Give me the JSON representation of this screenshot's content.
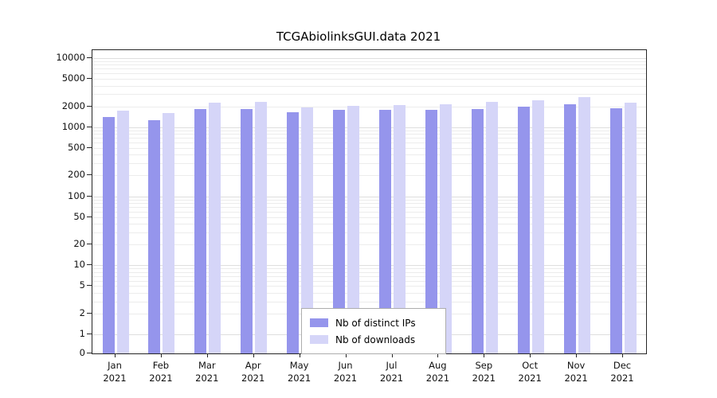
{
  "chart_data": {
    "type": "bar",
    "title": "TCGAbiolinksGUI.data 2021",
    "year": "2021",
    "categories": [
      "Jan",
      "Feb",
      "Mar",
      "Apr",
      "May",
      "Jun",
      "Jul",
      "Aug",
      "Sep",
      "Oct",
      "Nov",
      "Dec"
    ],
    "series": [
      {
        "name": "Nb of distinct IPs",
        "color": "#9595ec",
        "values": [
          1400,
          1250,
          1850,
          1850,
          1650,
          1800,
          1800,
          1800,
          1850,
          2000,
          2150,
          1900
        ]
      },
      {
        "name": "Nb of downloads",
        "color": "#d5d5f8",
        "values": [
          1750,
          1600,
          2250,
          2300,
          1950,
          2050,
          2100,
          2150,
          2300,
          2450,
          2700,
          2250
        ]
      }
    ],
    "yscale": "log",
    "ylim": [
      0,
      10000
    ],
    "yticks": [
      0,
      1,
      2,
      5,
      10,
      20,
      50,
      100,
      200,
      500,
      1000,
      2000,
      5000,
      10000
    ],
    "xlabel": "",
    "ylabel": "",
    "grid": true,
    "legend_position": "bottom-center"
  }
}
